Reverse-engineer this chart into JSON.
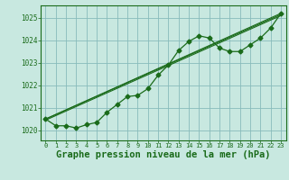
{
  "bg_color": "#c8e8e0",
  "grid_color": "#88bbbb",
  "line_color": "#1a6b1a",
  "xlabel": "Graphe pression niveau de la mer (hPa)",
  "xlabel_fontsize": 7.5,
  "yticks": [
    1020,
    1021,
    1022,
    1023,
    1024,
    1025
  ],
  "xticks": [
    0,
    1,
    2,
    3,
    4,
    5,
    6,
    7,
    8,
    9,
    10,
    11,
    12,
    13,
    14,
    15,
    16,
    17,
    18,
    19,
    20,
    21,
    22,
    23
  ],
  "xlim": [
    -0.5,
    23.5
  ],
  "ylim": [
    1019.55,
    1025.55
  ],
  "main_x": [
    0,
    1,
    2,
    3,
    4,
    5,
    6,
    7,
    8,
    9,
    10,
    11,
    12,
    13,
    14,
    15,
    16,
    17,
    18,
    19,
    20,
    21,
    22,
    23
  ],
  "main_y": [
    1020.5,
    1020.2,
    1020.2,
    1020.1,
    1020.25,
    1020.35,
    1020.8,
    1021.15,
    1021.5,
    1021.55,
    1021.85,
    1022.45,
    1022.9,
    1023.55,
    1023.95,
    1024.2,
    1024.1,
    1023.65,
    1023.5,
    1023.5,
    1023.8,
    1024.1,
    1024.55,
    1025.2
  ],
  "line2_x": [
    0,
    23
  ],
  "line2_y": [
    1020.5,
    1025.2
  ],
  "line3_x": [
    0,
    23
  ],
  "line3_y": [
    1020.5,
    1025.15
  ],
  "line4_x": [
    0,
    23
  ],
  "line4_y": [
    1020.45,
    1025.1
  ]
}
